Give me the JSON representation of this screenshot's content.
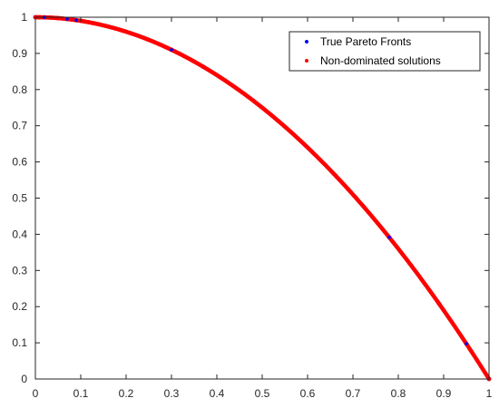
{
  "chart_data": {
    "type": "scatter",
    "title": "",
    "xlabel": "",
    "ylabel": "",
    "xlim": [
      0,
      1
    ],
    "ylim": [
      0,
      1
    ],
    "xticks": [
      0,
      0.1,
      0.2,
      0.3,
      0.4,
      0.5,
      0.6,
      0.7,
      0.8,
      0.9,
      1
    ],
    "yticks": [
      0,
      0.1,
      0.2,
      0.3,
      0.4,
      0.5,
      0.6,
      0.7,
      0.8,
      0.9,
      1
    ],
    "grid": false,
    "legend_position": "top-right",
    "series": [
      {
        "name": "True Pareto Fronts",
        "color": "#0000ff",
        "points": [
          [
            0.0,
            1.0
          ],
          [
            0.02,
            0.9996
          ],
          [
            0.05,
            0.9975
          ],
          [
            0.07,
            0.9951
          ],
          [
            0.08,
            0.9936
          ],
          [
            0.09,
            0.9919
          ],
          [
            0.1,
            0.99
          ],
          [
            0.3,
            0.91
          ],
          [
            0.37,
            0.8631
          ],
          [
            0.78,
            0.3916
          ],
          [
            0.89,
            0.2079
          ],
          [
            0.95,
            0.0975
          ],
          [
            1.0,
            0.0
          ]
        ]
      },
      {
        "name": "Non-dominated solutions",
        "color": "#ff0000",
        "points": [
          [
            0.0,
            1.0
          ],
          [
            0.02,
            0.9996
          ],
          [
            0.04,
            0.9984
          ],
          [
            0.06,
            0.9964
          ],
          [
            0.08,
            0.9936
          ],
          [
            0.1,
            0.99
          ],
          [
            0.12,
            0.9856
          ],
          [
            0.14,
            0.9804
          ],
          [
            0.16,
            0.9744
          ],
          [
            0.18,
            0.9676
          ],
          [
            0.2,
            0.96
          ],
          [
            0.22,
            0.9516
          ],
          [
            0.24,
            0.9424
          ],
          [
            0.26,
            0.9324
          ],
          [
            0.28,
            0.9216
          ],
          [
            0.3,
            0.91
          ],
          [
            0.32,
            0.8976
          ],
          [
            0.34,
            0.8844
          ],
          [
            0.36,
            0.8704
          ],
          [
            0.38,
            0.8556
          ],
          [
            0.4,
            0.84
          ],
          [
            0.42,
            0.8236
          ],
          [
            0.44,
            0.8064
          ],
          [
            0.46,
            0.7884
          ],
          [
            0.48,
            0.7696
          ],
          [
            0.5,
            0.75
          ],
          [
            0.52,
            0.7296
          ],
          [
            0.54,
            0.7084
          ],
          [
            0.56,
            0.6864
          ],
          [
            0.58,
            0.6636
          ],
          [
            0.6,
            0.64
          ],
          [
            0.62,
            0.6156
          ],
          [
            0.64,
            0.5904
          ],
          [
            0.66,
            0.5644
          ],
          [
            0.68,
            0.5376
          ],
          [
            0.7,
            0.51
          ],
          [
            0.72,
            0.4816
          ],
          [
            0.74,
            0.4524
          ],
          [
            0.76,
            0.4224
          ],
          [
            0.78,
            0.3916
          ],
          [
            0.8,
            0.36
          ],
          [
            0.82,
            0.3276
          ],
          [
            0.84,
            0.2944
          ],
          [
            0.86,
            0.2604
          ],
          [
            0.88,
            0.2256
          ],
          [
            0.9,
            0.19
          ],
          [
            0.92,
            0.1536
          ],
          [
            0.94,
            0.1164
          ],
          [
            0.96,
            0.0784
          ],
          [
            0.98,
            0.0396
          ],
          [
            1.0,
            0.0
          ]
        ]
      }
    ]
  }
}
